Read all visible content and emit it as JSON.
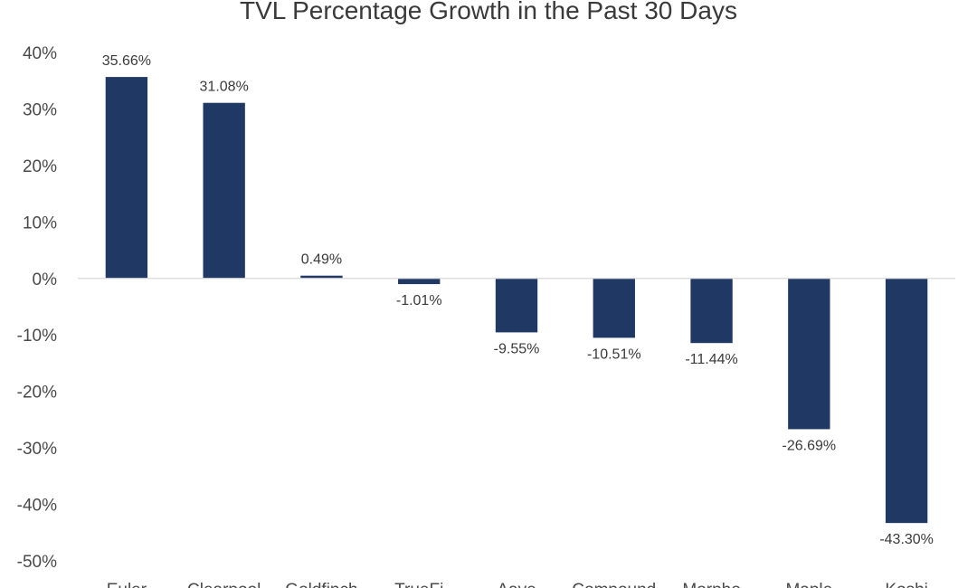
{
  "chart_data": {
    "type": "bar",
    "title": "TVL Percentage Growth in the Past 30 Days",
    "categories": [
      "Euler",
      "Clearpool",
      "Goldfinch",
      "TrueFi",
      "Aave",
      "Compound",
      "Morpho",
      "Maple",
      "Koshi"
    ],
    "values": [
      35.66,
      31.08,
      0.49,
      -1.01,
      -9.55,
      -10.51,
      -11.44,
      -26.69,
      -43.3
    ],
    "data_labels": [
      "35.66%",
      "31.08%",
      "0.49%",
      "-1.01%",
      "-9.55%",
      "-10.51%",
      "-11.44%",
      "-26.69%",
      "-43.30%"
    ],
    "yticks": [
      40,
      30,
      20,
      10,
      0,
      -10,
      -20,
      -30,
      -40,
      -50
    ],
    "ytick_labels": [
      "40%",
      "30%",
      "20%",
      "10%",
      "0%",
      "-10%",
      "-20%",
      "-30%",
      "-40%",
      "-50%"
    ],
    "ylim": [
      -50,
      40
    ],
    "xlabel": "",
    "ylabel": "",
    "grid": false,
    "legend": "none",
    "colors": {
      "bar": "#1f3864",
      "zero_line": "#d9d9d9"
    }
  }
}
